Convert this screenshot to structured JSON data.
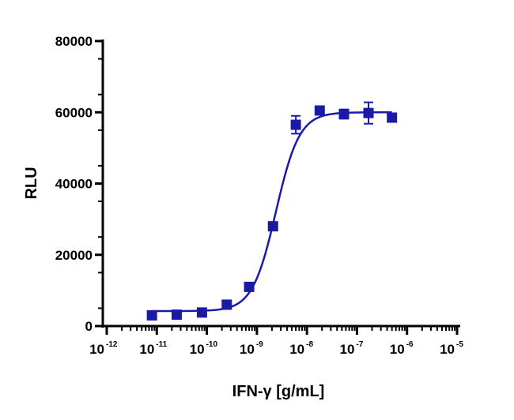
{
  "chart_data": {
    "type": "scatter",
    "xlabel": "IFN-γ [g/mL]",
    "ylabel": "RLU",
    "x_scale": "log10",
    "xlim": [
      1e-12,
      1e-05
    ],
    "ylim": [
      0,
      80000
    ],
    "x_ticks": [
      {
        "base": "10",
        "exp": "-12"
      },
      {
        "base": "10",
        "exp": "-11"
      },
      {
        "base": "10",
        "exp": "-10"
      },
      {
        "base": "10",
        "exp": "-9"
      },
      {
        "base": "10",
        "exp": "-8"
      },
      {
        "base": "10",
        "exp": "-7"
      },
      {
        "base": "10",
        "exp": "-6"
      },
      {
        "base": "10",
        "exp": "-5"
      }
    ],
    "y_ticks": [
      "0",
      "20000",
      "40000",
      "60000",
      "80000"
    ],
    "grid": false,
    "legend": "none",
    "series": [
      {
        "color": "#1a1aa6",
        "x": [
          8e-12,
          2.5e-11,
          8e-11,
          2.5e-10,
          7e-10,
          2.1e-09,
          6e-09,
          1.8e-08,
          5.5e-08,
          1.7e-07,
          5e-07
        ],
        "y": [
          3000,
          3200,
          3800,
          6000,
          11000,
          28000,
          56500,
          60500,
          59500,
          59800,
          58500
        ],
        "error": [
          900,
          600,
          500,
          600,
          500,
          800,
          2500,
          900,
          1300,
          3000,
          1200
        ]
      }
    ],
    "fit_curve": {
      "model": "4PL",
      "bottom": 4200,
      "top": 60000,
      "ec50": 2.4e-09,
      "hill": 1.85
    }
  }
}
